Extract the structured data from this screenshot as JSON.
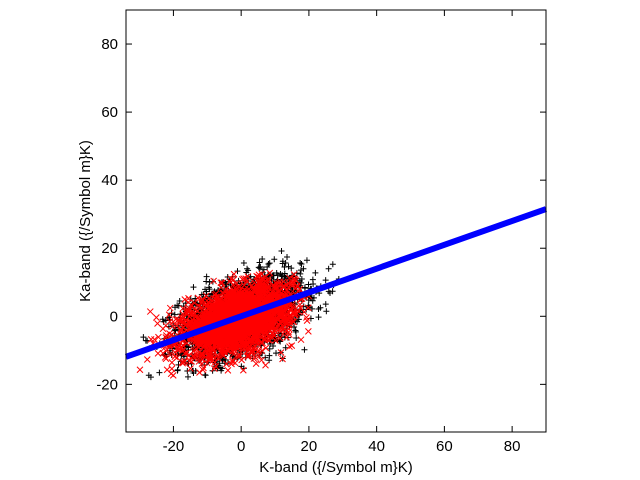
{
  "chart_data": {
    "type": "scatter",
    "xlabel": "K-band ({/Symbol m}K)",
    "ylabel": "Ka-band ({/Symbol m}K)",
    "xlim": [
      -34,
      90
    ],
    "ylim": [
      -34,
      90
    ],
    "xticks": [
      -20,
      0,
      20,
      40,
      60,
      80
    ],
    "yticks": [
      -20,
      0,
      20,
      40,
      60,
      80
    ],
    "xtick_labels": [
      "-20",
      "0",
      "20",
      "40",
      "60",
      "80"
    ],
    "ytick_labels": [
      "-20",
      "0",
      "20",
      "40",
      "60",
      "80"
    ],
    "grid": false,
    "series": [
      {
        "marker": "plus",
        "color": "#000000",
        "center": [
          0,
          0
        ],
        "spread_x": 9,
        "spread_y": 6,
        "correlation": 0.45,
        "n_points": 2500,
        "x_range": [
          -30,
          32
        ],
        "y_range": [
          -18,
          20
        ]
      },
      {
        "marker": "cross",
        "color": "#ff0000",
        "center": [
          -1,
          -1
        ],
        "spread_x": 8,
        "spread_y": 5,
        "correlation": 0.45,
        "n_points": 2500,
        "x_range": [
          -34,
          22
        ],
        "y_range": [
          -18,
          13
        ]
      },
      {
        "type": "line",
        "color": "#0000ff",
        "slope": 0.35,
        "intercept": 0,
        "x_range": [
          -34,
          90
        ]
      }
    ]
  }
}
